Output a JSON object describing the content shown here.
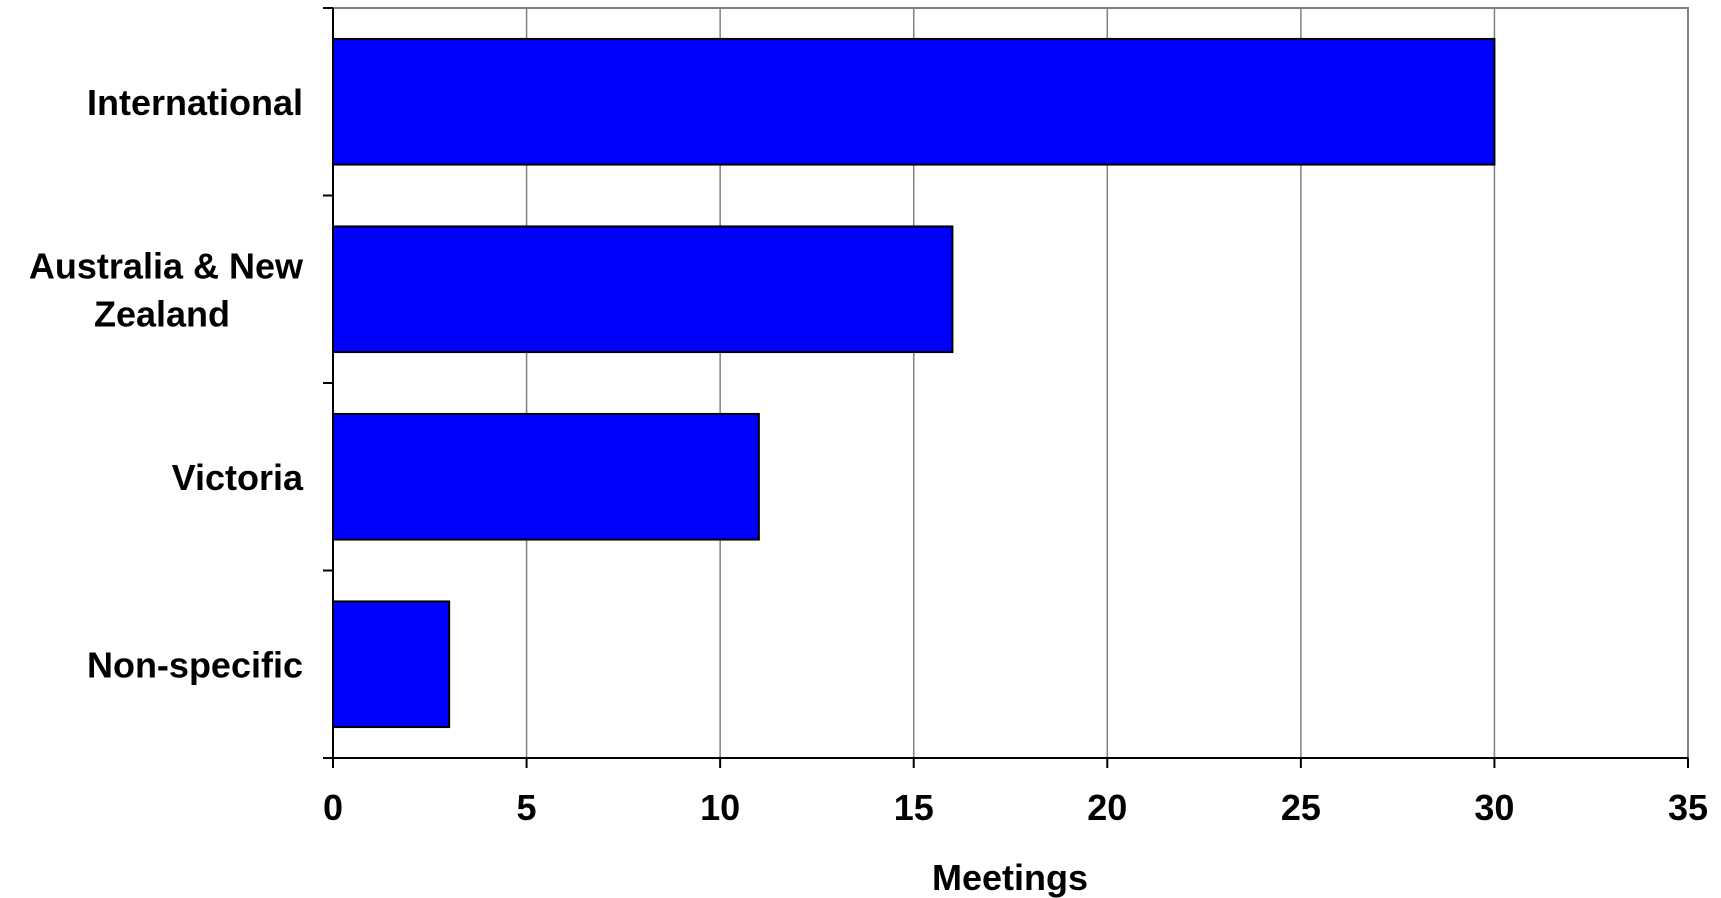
{
  "chart_data": {
    "type": "bar",
    "orientation": "horizontal",
    "categories": [
      [
        "International"
      ],
      [
        "Australia & New",
        "Zealand"
      ],
      [
        "Victoria"
      ],
      [
        "Non-specific"
      ]
    ],
    "values": [
      30,
      16,
      11,
      3
    ],
    "xlabel": "Meetings",
    "xlim": [
      0,
      35
    ],
    "xticks": [
      0,
      5,
      10,
      15,
      20,
      25,
      30,
      35
    ],
    "grid": "vertical",
    "legend": "none",
    "colors": {
      "bar": "#0000ff",
      "bar_border": "#000000",
      "grid": "#808080",
      "axis": "#000000"
    }
  }
}
